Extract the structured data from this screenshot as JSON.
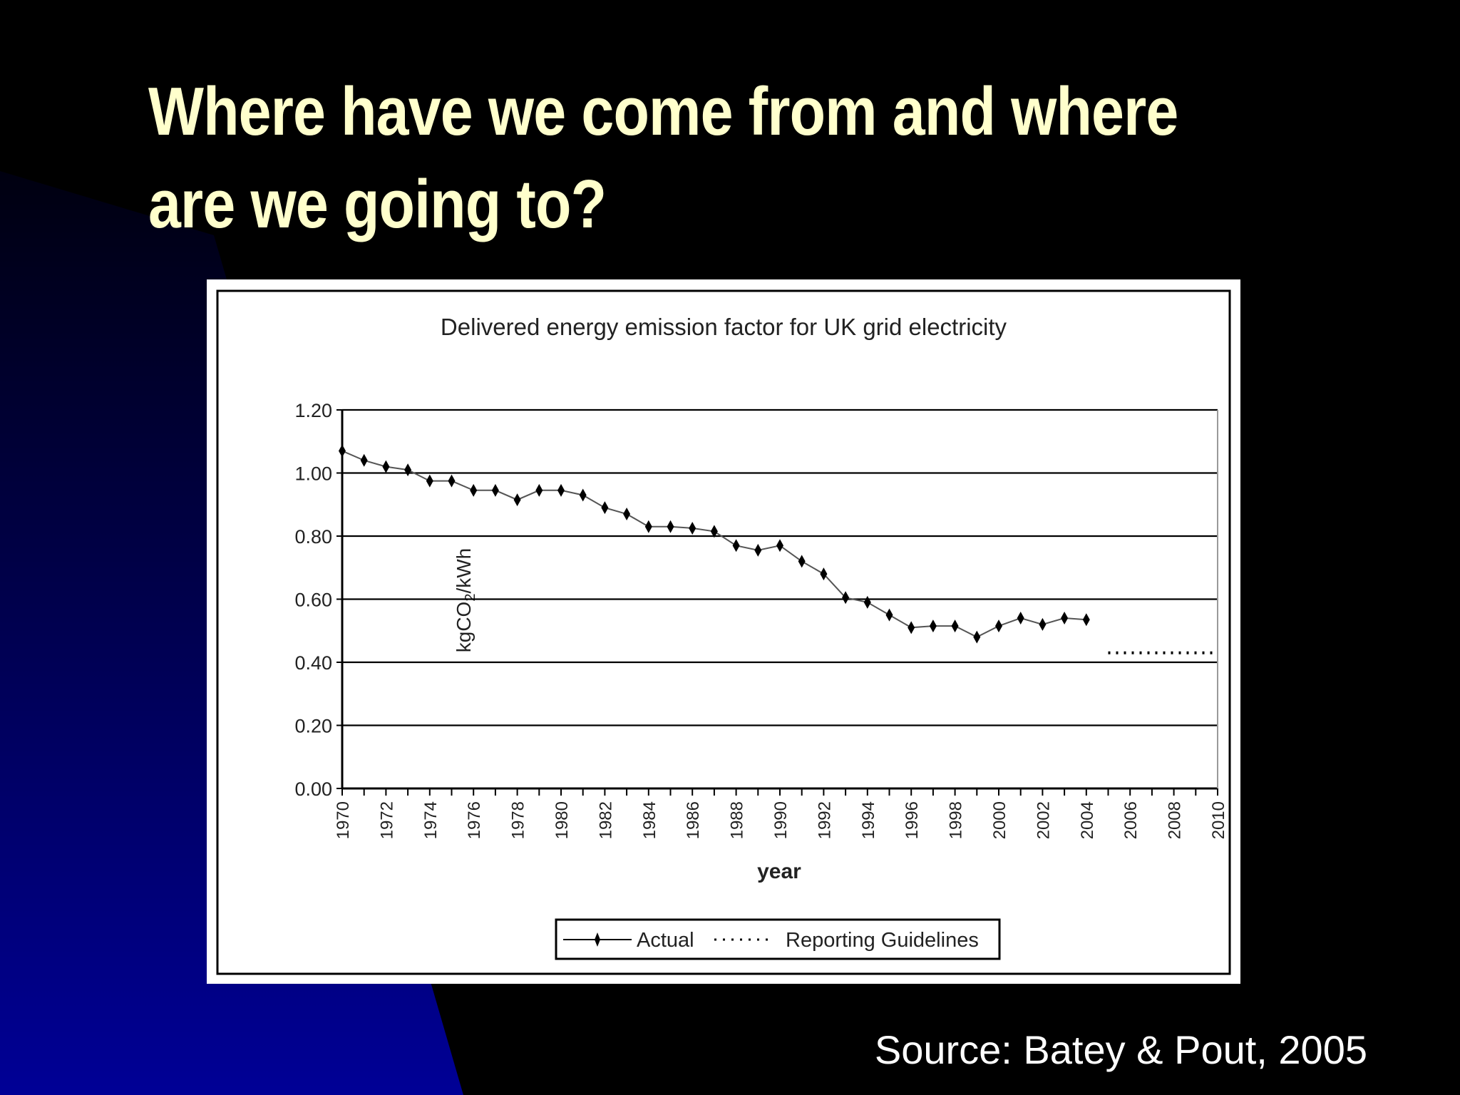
{
  "slide": {
    "title_line1": "Where have we come from and where",
    "title_line2": "are we going to?",
    "source": "Source: Batey & Pout, 2005"
  },
  "colors": {
    "title": "#ffffcc",
    "background_dark": "#000000",
    "background_blue": "#000099",
    "series": "#000000"
  },
  "chart_data": {
    "type": "line",
    "title": "Delivered energy emission factor for UK grid electricity",
    "xlabel": "year",
    "ylabel": "kgCO2/kWh",
    "ylim": [
      0,
      1.2
    ],
    "xlim": [
      1970,
      2010
    ],
    "yticks": [
      "0.00",
      "0.20",
      "0.40",
      "0.60",
      "0.80",
      "1.00",
      "1.20"
    ],
    "xticks": [
      "1970",
      "1972",
      "1974",
      "1976",
      "1978",
      "1980",
      "1982",
      "1984",
      "1986",
      "1988",
      "1990",
      "1992",
      "1994",
      "1996",
      "1998",
      "2000",
      "2002",
      "2004",
      "2006",
      "2008",
      "2010"
    ],
    "grid": "horizontal",
    "legend_position": "bottom",
    "series": [
      {
        "name": "Actual",
        "style": "solid-with-markers",
        "x": [
          1970,
          1971,
          1972,
          1973,
          1974,
          1975,
          1976,
          1977,
          1978,
          1979,
          1980,
          1981,
          1982,
          1983,
          1984,
          1985,
          1986,
          1987,
          1988,
          1989,
          1990,
          1991,
          1992,
          1993,
          1994,
          1995,
          1996,
          1997,
          1998,
          1999,
          2000,
          2001,
          2002,
          2003,
          2004
        ],
        "y": [
          1.07,
          1.04,
          1.02,
          1.01,
          0.975,
          0.975,
          0.945,
          0.945,
          0.915,
          0.945,
          0.945,
          0.93,
          0.89,
          0.87,
          0.83,
          0.83,
          0.825,
          0.815,
          0.77,
          0.755,
          0.77,
          0.72,
          0.68,
          0.605,
          0.59,
          0.55,
          0.51,
          0.515,
          0.515,
          0.48,
          0.515,
          0.54,
          0.52,
          0.54,
          0.535
        ]
      },
      {
        "name": "Reporting Guidelines",
        "style": "dotted",
        "x": [
          2005,
          2010
        ],
        "y": [
          0.43,
          0.43
        ]
      }
    ]
  }
}
